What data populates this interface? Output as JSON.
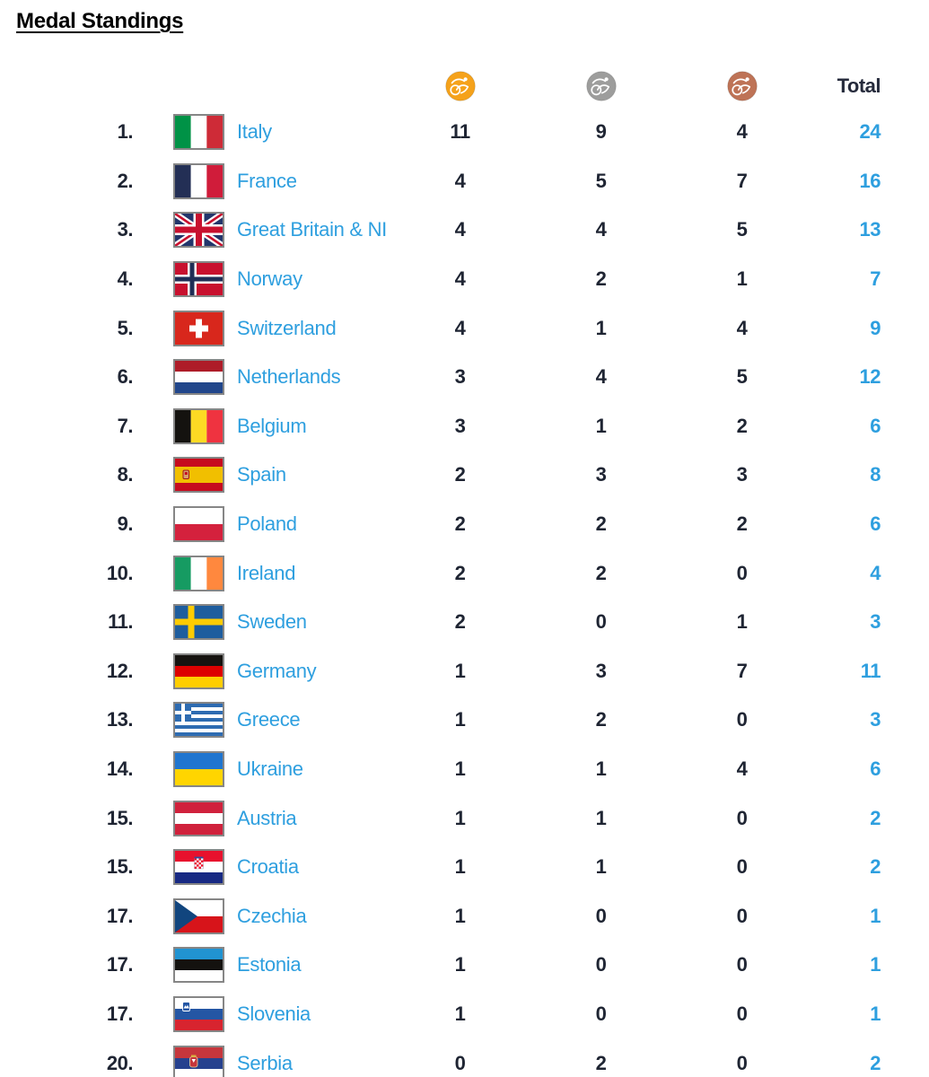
{
  "title": "Medal Standings",
  "columns": {
    "gold_icon": "gold-medal-icon",
    "silver_icon": "silver-medal-icon",
    "bronze_icon": "bronze-medal-icon",
    "total_label": "Total"
  },
  "colors": {
    "accent_blue": "#2E9FDF",
    "dark_text": "#1F2533",
    "title_black": "#000000",
    "gold": "#F5A21B",
    "silver": "#9D9D9C",
    "bronze": "#BE7356",
    "flag_border": "#868686"
  },
  "chart_data": {
    "type": "table",
    "title": "Medal Standings",
    "columns": [
      "rank",
      "country",
      "gold",
      "silver",
      "bronze",
      "total"
    ]
  },
  "standings": [
    {
      "rank": "1.",
      "country": "Italy",
      "flag": "it",
      "gold": "11",
      "silver": "9",
      "bronze": "4",
      "total": "24"
    },
    {
      "rank": "2.",
      "country": "France",
      "flag": "fr",
      "gold": "4",
      "silver": "5",
      "bronze": "7",
      "total": "16"
    },
    {
      "rank": "3.",
      "country": "Great Britain & NI",
      "flag": "gb",
      "gold": "4",
      "silver": "4",
      "bronze": "5",
      "total": "13"
    },
    {
      "rank": "4.",
      "country": "Norway",
      "flag": "no",
      "gold": "4",
      "silver": "2",
      "bronze": "1",
      "total": "7"
    },
    {
      "rank": "5.",
      "country": "Switzerland",
      "flag": "ch",
      "gold": "4",
      "silver": "1",
      "bronze": "4",
      "total": "9"
    },
    {
      "rank": "6.",
      "country": "Netherlands",
      "flag": "nl",
      "gold": "3",
      "silver": "4",
      "bronze": "5",
      "total": "12"
    },
    {
      "rank": "7.",
      "country": "Belgium",
      "flag": "be",
      "gold": "3",
      "silver": "1",
      "bronze": "2",
      "total": "6"
    },
    {
      "rank": "8.",
      "country": "Spain",
      "flag": "es",
      "gold": "2",
      "silver": "3",
      "bronze": "3",
      "total": "8"
    },
    {
      "rank": "9.",
      "country": "Poland",
      "flag": "pl",
      "gold": "2",
      "silver": "2",
      "bronze": "2",
      "total": "6"
    },
    {
      "rank": "10.",
      "country": "Ireland",
      "flag": "ie",
      "gold": "2",
      "silver": "2",
      "bronze": "0",
      "total": "4"
    },
    {
      "rank": "11.",
      "country": "Sweden",
      "flag": "se",
      "gold": "2",
      "silver": "0",
      "bronze": "1",
      "total": "3"
    },
    {
      "rank": "12.",
      "country": "Germany",
      "flag": "de",
      "gold": "1",
      "silver": "3",
      "bronze": "7",
      "total": "11"
    },
    {
      "rank": "13.",
      "country": "Greece",
      "flag": "gr",
      "gold": "1",
      "silver": "2",
      "bronze": "0",
      "total": "3"
    },
    {
      "rank": "14.",
      "country": "Ukraine",
      "flag": "ua",
      "gold": "1",
      "silver": "1",
      "bronze": "4",
      "total": "6"
    },
    {
      "rank": "15.",
      "country": "Austria",
      "flag": "at",
      "gold": "1",
      "silver": "1",
      "bronze": "0",
      "total": "2"
    },
    {
      "rank": "15.",
      "country": "Croatia",
      "flag": "hr",
      "gold": "1",
      "silver": "1",
      "bronze": "0",
      "total": "2"
    },
    {
      "rank": "17.",
      "country": "Czechia",
      "flag": "cz",
      "gold": "1",
      "silver": "0",
      "bronze": "0",
      "total": "1"
    },
    {
      "rank": "17.",
      "country": "Estonia",
      "flag": "ee",
      "gold": "1",
      "silver": "0",
      "bronze": "0",
      "total": "1"
    },
    {
      "rank": "17.",
      "country": "Slovenia",
      "flag": "si",
      "gold": "1",
      "silver": "0",
      "bronze": "0",
      "total": "1"
    },
    {
      "rank": "20.",
      "country": "Serbia",
      "flag": "rs",
      "gold": "0",
      "silver": "2",
      "bronze": "0",
      "total": "2"
    }
  ]
}
